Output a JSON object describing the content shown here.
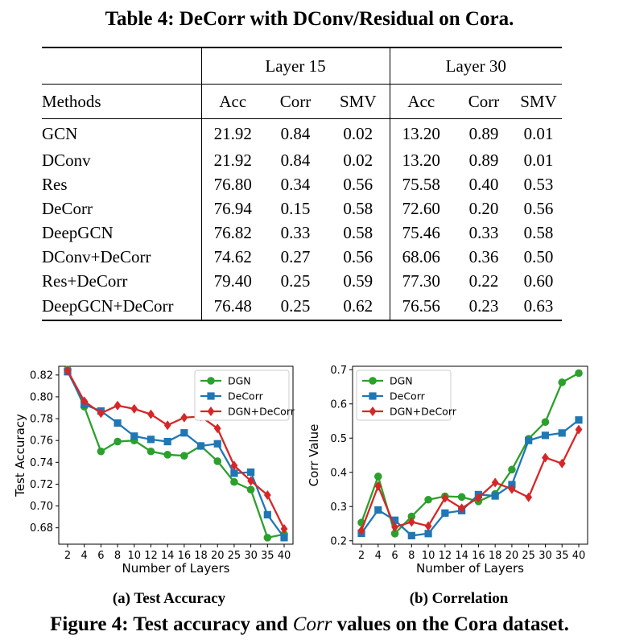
{
  "table": {
    "caption": "Table 4: DeCorr with DConv/Residual on Cora.",
    "group_headers": [
      "Layer 15",
      "Layer 30"
    ],
    "methods_header": "Methods",
    "column_headers": [
      "Acc",
      "Corr",
      "SMV",
      "Acc",
      "Corr",
      "SMV"
    ],
    "rows": [
      {
        "method": "GCN",
        "values": [
          "21.92",
          "0.84",
          "0.02",
          "13.20",
          "0.89",
          "0.01"
        ]
      },
      {
        "method": "DConv",
        "values": [
          "21.92",
          "0.84",
          "0.02",
          "13.20",
          "0.89",
          "0.01"
        ]
      },
      {
        "method": "Res",
        "values": [
          "76.80",
          "0.34",
          "0.56",
          "75.58",
          "0.40",
          "0.53"
        ]
      },
      {
        "method": "DeCorr",
        "values": [
          "76.94",
          "0.15",
          "0.58",
          "72.60",
          "0.20",
          "0.56"
        ]
      },
      {
        "method": "DeepGCN",
        "values": [
          "76.82",
          "0.33",
          "0.58",
          "75.46",
          "0.33",
          "0.58"
        ]
      },
      {
        "method": "DConv+DeCorr",
        "values": [
          "74.62",
          "0.27",
          "0.56",
          "68.06",
          "0.36",
          "0.50"
        ]
      },
      {
        "method": "Res+DeCorr",
        "values": [
          "79.40",
          "0.25",
          "0.59",
          "77.30",
          "0.22",
          "0.60"
        ]
      },
      {
        "method": "DeepGCN+DeCorr",
        "values": [
          "76.48",
          "0.25",
          "0.62",
          "76.56",
          "0.23",
          "0.63"
        ]
      }
    ]
  },
  "subfig_a_label": "(a) Test Accuracy",
  "subfig_b_label": "(b) Correlation",
  "figure_caption": {
    "prefix": "Figure 4: Test accuracy and ",
    "italic": "Corr",
    "suffix": " values on the Cora dataset."
  },
  "chart_data": [
    {
      "type": "line",
      "xlabel": "Number of Layers",
      "ylabel": "Test Accuracy",
      "categories": [
        "2",
        "4",
        "6",
        "8",
        "10",
        "12",
        "14",
        "16",
        "18",
        "20",
        "25",
        "30",
        "35",
        "40"
      ],
      "ylim": [
        0.665,
        0.828
      ],
      "yticks": [
        "0.68",
        "0.70",
        "0.72",
        "0.74",
        "0.76",
        "0.78",
        "0.80",
        "0.82"
      ],
      "legend_position": "top-right",
      "grid": false,
      "series": [
        {
          "name": "DGN",
          "color": "#2ca02c",
          "marker": "circle",
          "values": [
            0.825,
            0.791,
            0.75,
            0.759,
            0.76,
            0.75,
            0.747,
            0.746,
            0.755,
            0.741,
            0.722,
            0.715,
            0.671,
            0.674
          ]
        },
        {
          "name": "DeCorr",
          "color": "#1f77b4",
          "marker": "square",
          "values": [
            0.823,
            0.793,
            0.787,
            0.776,
            0.764,
            0.761,
            0.759,
            0.767,
            0.755,
            0.757,
            0.73,
            0.731,
            0.692,
            0.671
          ]
        },
        {
          "name": "DGN+DeCorr",
          "color": "#d62728",
          "marker": "diamond",
          "values": [
            0.824,
            0.796,
            0.785,
            0.792,
            0.789,
            0.784,
            0.774,
            0.781,
            0.782,
            0.771,
            0.737,
            0.723,
            0.71,
            0.679
          ]
        }
      ]
    },
    {
      "type": "line",
      "xlabel": "Number of Layers",
      "ylabel": "Corr Value",
      "categories": [
        "2",
        "4",
        "6",
        "8",
        "10",
        "12",
        "14",
        "16",
        "18",
        "20",
        "25",
        "30",
        "35",
        "40"
      ],
      "ylim": [
        0.19,
        0.71
      ],
      "yticks": [
        "0.2",
        "0.3",
        "0.4",
        "0.5",
        "0.6",
        "0.7"
      ],
      "legend_position": "top-left",
      "grid": false,
      "series": [
        {
          "name": "DGN",
          "color": "#2ca02c",
          "marker": "circle",
          "values": [
            0.253,
            0.388,
            0.221,
            0.271,
            0.32,
            0.33,
            0.328,
            0.315,
            0.337,
            0.408,
            0.498,
            0.547,
            0.663,
            0.69
          ]
        },
        {
          "name": "DeCorr",
          "color": "#1f77b4",
          "marker": "square",
          "values": [
            0.222,
            0.29,
            0.26,
            0.215,
            0.221,
            0.281,
            0.288,
            0.335,
            0.331,
            0.364,
            0.493,
            0.508,
            0.515,
            0.553
          ]
        },
        {
          "name": "DGN+DeCorr",
          "color": "#d62728",
          "marker": "diamond",
          "values": [
            0.23,
            0.36,
            0.24,
            0.255,
            0.243,
            0.325,
            0.295,
            0.326,
            0.37,
            0.351,
            0.327,
            0.443,
            0.426,
            0.525
          ]
        }
      ]
    }
  ]
}
